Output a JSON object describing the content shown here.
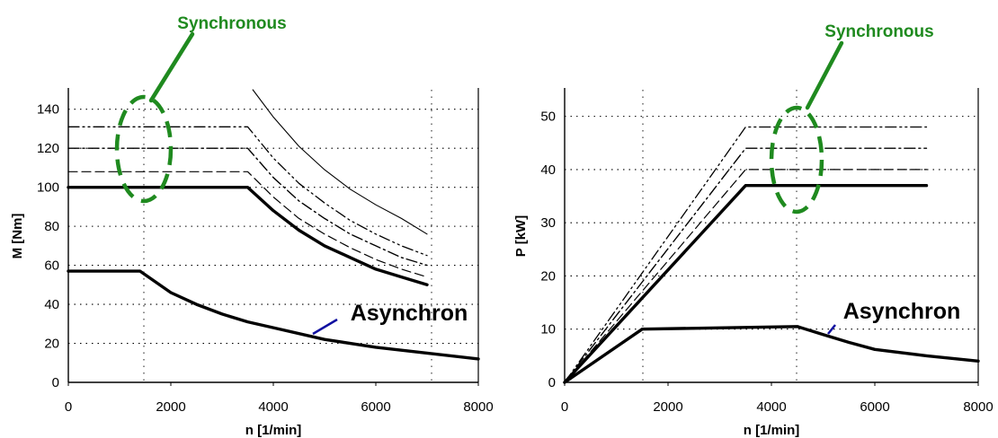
{
  "colors": {
    "annotation_green": "#1f8a1f",
    "pointer_blue": "#1010a0",
    "ink": "#000000"
  },
  "chart_data": [
    {
      "type": "line",
      "xlabel": "n [1/min]",
      "ylabel": "M [Nm]",
      "xlim": [
        0,
        8000
      ],
      "ylim": [
        0,
        150
      ],
      "xticks": [
        "0",
        "2000",
        "4000",
        "6000",
        "8000"
      ],
      "yticks": [
        "0",
        "20",
        "40",
        "60",
        "80",
        "100",
        "120",
        "140"
      ],
      "grid": true,
      "annotations": [
        {
          "text": "Synchronous",
          "points_at": "family of torque plateaus 100–131 Nm below ~1300 1/min"
        },
        {
          "text": "Asynchron",
          "points_at": "lower torque curve near 4800 1/min"
        }
      ],
      "series": [
        {
          "style": "heavy",
          "x": [
            0,
            3500,
            4000,
            4500,
            5000,
            5500,
            6000,
            6500,
            7000
          ],
          "y": [
            100,
            100,
            88,
            78,
            70,
            64,
            58,
            54,
            50
          ]
        },
        {
          "style": "dashed",
          "x": [
            0,
            3500,
            4000,
            4500,
            5000,
            5500,
            6000,
            6500,
            7000
          ],
          "y": [
            108,
            108,
            95,
            84,
            76,
            69,
            63,
            58,
            54
          ]
        },
        {
          "style": "dash-dot",
          "x": [
            0,
            3500,
            4000,
            4500,
            5000,
            5500,
            6000,
            6500,
            7000
          ],
          "y": [
            120,
            120,
            105,
            93,
            84,
            76,
            70,
            64,
            60
          ]
        },
        {
          "style": "dash-dot-dot",
          "x": [
            0,
            3500,
            4000,
            4500,
            5000,
            5500,
            6000,
            6500,
            7000
          ],
          "y": [
            131,
            131,
            115,
            102,
            92,
            83,
            76,
            70,
            65
          ]
        },
        {
          "style": "thin",
          "x": [
            3600,
            4000,
            4500,
            5000,
            5500,
            6000,
            6500,
            7000
          ],
          "y": [
            150,
            136,
            121,
            109,
            99,
            91,
            84,
            76
          ]
        },
        {
          "style": "heavy",
          "x": [
            0,
            1400,
            2000,
            2500,
            3000,
            3500,
            4000,
            5000,
            6000,
            7000,
            8000
          ],
          "y": [
            57,
            57,
            46,
            40,
            35,
            31,
            28,
            22,
            18,
            15,
            12
          ]
        }
      ]
    },
    {
      "type": "line",
      "xlabel": "n [1/min]",
      "ylabel": "P [kW]",
      "xlim": [
        0,
        8000
      ],
      "ylim": [
        0,
        55
      ],
      "xticks": [
        "0",
        "2000",
        "4000",
        "6000",
        "8000"
      ],
      "yticks": [
        "0",
        "10",
        "20",
        "30",
        "40",
        "50"
      ],
      "grid": true,
      "annotations": [
        {
          "text": "Synchronous",
          "points_at": "family of power plateaus 37–48 kW around 5000 1/min"
        },
        {
          "text": "Asynchron",
          "points_at": "lower power curve near 5200 1/min"
        }
      ],
      "series": [
        {
          "style": "heavy",
          "x": [
            0,
            3500,
            7000
          ],
          "y": [
            0,
            37,
            37
          ]
        },
        {
          "style": "dashed",
          "x": [
            0,
            3500,
            7000
          ],
          "y": [
            0,
            40,
            40
          ]
        },
        {
          "style": "dash-dot",
          "x": [
            0,
            3500,
            7000
          ],
          "y": [
            0,
            44,
            44
          ]
        },
        {
          "style": "dash-dot-dot",
          "x": [
            0,
            3500,
            7000
          ],
          "y": [
            0,
            48,
            48
          ]
        },
        {
          "style": "thin",
          "x": [
            0,
            1500
          ],
          "y": [
            0,
            10
          ]
        },
        {
          "style": "heavy",
          "x": [
            0,
            1500,
            4500,
            5000,
            5500,
            6000,
            7000,
            8000
          ],
          "y": [
            0,
            10,
            10.5,
            9,
            7.5,
            6.2,
            5,
            4
          ]
        }
      ]
    }
  ]
}
